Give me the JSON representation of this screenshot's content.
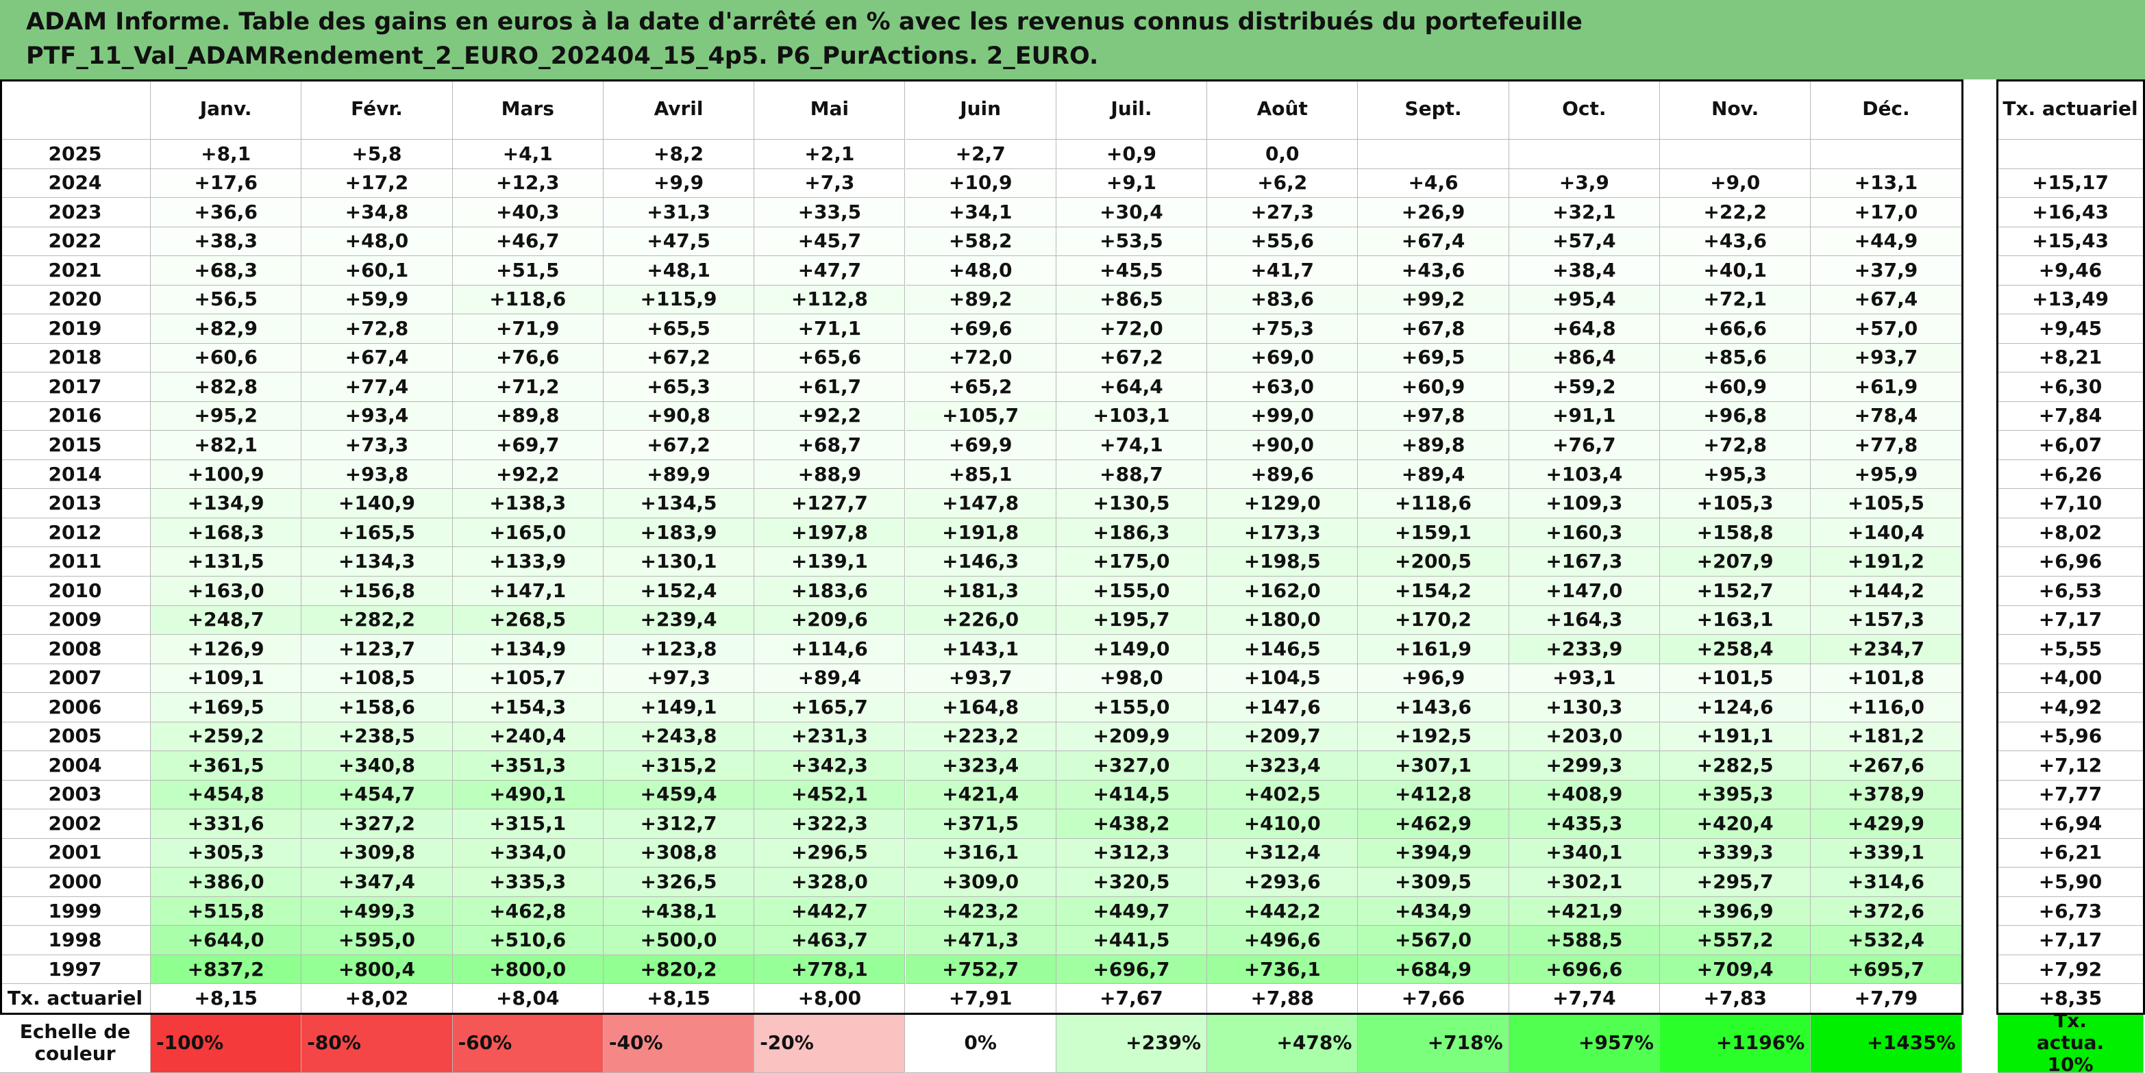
{
  "header": {
    "title_lines": [
      "ADAM Informe. Table des gains en euros à la date d'arrêté en % avec les revenus connus distribués du portefeuille",
      "PTF_11_Val_ADAMRendement_2_EURO_202404_15_4p5. P6_PurActions. 2_EURO."
    ]
  },
  "table": {
    "months": [
      "Janv.",
      "Févr.",
      "Mars",
      "Avril",
      "Mai",
      "Juin",
      "Juil.",
      "Août",
      "Sept.",
      "Oct.",
      "Nov.",
      "Déc."
    ],
    "rate_header": "Tx. actuariel",
    "rows": [
      {
        "year": "2025",
        "values": [
          "+8,1",
          "+5,8",
          "+4,1",
          "+8,2",
          "+2,1",
          "+2,7",
          "+0,9",
          "0,0"
        ]
      },
      {
        "year": "2024",
        "values": [
          "+17,6",
          "+17,2",
          "+12,3",
          "+9,9",
          "+7,3",
          "+10,9",
          "+9,1",
          "+6,2",
          "+4,6",
          "+3,9",
          "+9,0",
          "+13,1"
        ],
        "rate": "+15,17"
      },
      {
        "year": "2023",
        "values": [
          "+36,6",
          "+34,8",
          "+40,3",
          "+31,3",
          "+33,5",
          "+34,1",
          "+30,4",
          "+27,3",
          "+26,9",
          "+32,1",
          "+22,2",
          "+17,0"
        ],
        "rate": "+16,43"
      },
      {
        "year": "2022",
        "values": [
          "+38,3",
          "+48,0",
          "+46,7",
          "+47,5",
          "+45,7",
          "+58,2",
          "+53,5",
          "+55,6",
          "+67,4",
          "+57,4",
          "+43,6",
          "+44,9"
        ],
        "rate": "+15,43"
      },
      {
        "year": "2021",
        "values": [
          "+68,3",
          "+60,1",
          "+51,5",
          "+48,1",
          "+47,7",
          "+48,0",
          "+45,5",
          "+41,7",
          "+43,6",
          "+38,4",
          "+40,1",
          "+37,9"
        ],
        "rate": "+9,46"
      },
      {
        "year": "2020",
        "values": [
          "+56,5",
          "+59,9",
          "+118,6",
          "+115,9",
          "+112,8",
          "+89,2",
          "+86,5",
          "+83,6",
          "+99,2",
          "+95,4",
          "+72,1",
          "+67,4"
        ],
        "rate": "+13,49"
      },
      {
        "year": "2019",
        "values": [
          "+82,9",
          "+72,8",
          "+71,9",
          "+65,5",
          "+71,1",
          "+69,6",
          "+72,0",
          "+75,3",
          "+67,8",
          "+64,8",
          "+66,6",
          "+57,0"
        ],
        "rate": "+9,45"
      },
      {
        "year": "2018",
        "values": [
          "+60,6",
          "+67,4",
          "+76,6",
          "+67,2",
          "+65,6",
          "+72,0",
          "+67,2",
          "+69,0",
          "+69,5",
          "+86,4",
          "+85,6",
          "+93,7"
        ],
        "rate": "+8,21"
      },
      {
        "year": "2017",
        "values": [
          "+82,8",
          "+77,4",
          "+71,2",
          "+65,3",
          "+61,7",
          "+65,2",
          "+64,4",
          "+63,0",
          "+60,9",
          "+59,2",
          "+60,9",
          "+61,9"
        ],
        "rate": "+6,30"
      },
      {
        "year": "2016",
        "values": [
          "+95,2",
          "+93,4",
          "+89,8",
          "+90,8",
          "+92,2",
          "+105,7",
          "+103,1",
          "+99,0",
          "+97,8",
          "+91,1",
          "+96,8",
          "+78,4"
        ],
        "rate": "+7,84"
      },
      {
        "year": "2015",
        "values": [
          "+82,1",
          "+73,3",
          "+69,7",
          "+67,2",
          "+68,7",
          "+69,9",
          "+74,1",
          "+90,0",
          "+89,8",
          "+76,7",
          "+72,8",
          "+77,8"
        ],
        "rate": "+6,07"
      },
      {
        "year": "2014",
        "values": [
          "+100,9",
          "+93,8",
          "+92,2",
          "+89,9",
          "+88,9",
          "+85,1",
          "+88,7",
          "+89,6",
          "+89,4",
          "+103,4",
          "+95,3",
          "+95,9"
        ],
        "rate": "+6,26"
      },
      {
        "year": "2013",
        "values": [
          "+134,9",
          "+140,9",
          "+138,3",
          "+134,5",
          "+127,7",
          "+147,8",
          "+130,5",
          "+129,0",
          "+118,6",
          "+109,3",
          "+105,3",
          "+105,5"
        ],
        "rate": "+7,10"
      },
      {
        "year": "2012",
        "values": [
          "+168,3",
          "+165,5",
          "+165,0",
          "+183,9",
          "+197,8",
          "+191,8",
          "+186,3",
          "+173,3",
          "+159,1",
          "+160,3",
          "+158,8",
          "+140,4"
        ],
        "rate": "+8,02"
      },
      {
        "year": "2011",
        "values": [
          "+131,5",
          "+134,3",
          "+133,9",
          "+130,1",
          "+139,1",
          "+146,3",
          "+175,0",
          "+198,5",
          "+200,5",
          "+167,3",
          "+207,9",
          "+191,2"
        ],
        "rate": "+6,96"
      },
      {
        "year": "2010",
        "values": [
          "+163,0",
          "+156,8",
          "+147,1",
          "+152,4",
          "+183,6",
          "+181,3",
          "+155,0",
          "+162,0",
          "+154,2",
          "+147,0",
          "+152,7",
          "+144,2"
        ],
        "rate": "+6,53"
      },
      {
        "year": "2009",
        "values": [
          "+248,7",
          "+282,2",
          "+268,5",
          "+239,4",
          "+209,6",
          "+226,0",
          "+195,7",
          "+180,0",
          "+170,2",
          "+164,3",
          "+163,1",
          "+157,3"
        ],
        "rate": "+7,17"
      },
      {
        "year": "2008",
        "values": [
          "+126,9",
          "+123,7",
          "+134,9",
          "+123,8",
          "+114,6",
          "+143,1",
          "+149,0",
          "+146,5",
          "+161,9",
          "+233,9",
          "+258,4",
          "+234,7"
        ],
        "rate": "+5,55"
      },
      {
        "year": "2007",
        "values": [
          "+109,1",
          "+108,5",
          "+105,7",
          "+97,3",
          "+89,4",
          "+93,7",
          "+98,0",
          "+104,5",
          "+96,9",
          "+93,1",
          "+101,5",
          "+101,8"
        ],
        "rate": "+4,00"
      },
      {
        "year": "2006",
        "values": [
          "+169,5",
          "+158,6",
          "+154,3",
          "+149,1",
          "+165,7",
          "+164,8",
          "+155,0",
          "+147,6",
          "+143,6",
          "+130,3",
          "+124,6",
          "+116,0"
        ],
        "rate": "+4,92"
      },
      {
        "year": "2005",
        "values": [
          "+259,2",
          "+238,5",
          "+240,4",
          "+243,8",
          "+231,3",
          "+223,2",
          "+209,9",
          "+209,7",
          "+192,5",
          "+203,0",
          "+191,1",
          "+181,2"
        ],
        "rate": "+5,96"
      },
      {
        "year": "2004",
        "values": [
          "+361,5",
          "+340,8",
          "+351,3",
          "+315,2",
          "+342,3",
          "+323,4",
          "+327,0",
          "+323,4",
          "+307,1",
          "+299,3",
          "+282,5",
          "+267,6"
        ],
        "rate": "+7,12"
      },
      {
        "year": "2003",
        "values": [
          "+454,8",
          "+454,7",
          "+490,1",
          "+459,4",
          "+452,1",
          "+421,4",
          "+414,5",
          "+402,5",
          "+412,8",
          "+408,9",
          "+395,3",
          "+378,9"
        ],
        "rate": "+7,77"
      },
      {
        "year": "2002",
        "values": [
          "+331,6",
          "+327,2",
          "+315,1",
          "+312,7",
          "+322,3",
          "+371,5",
          "+438,2",
          "+410,0",
          "+462,9",
          "+435,3",
          "+420,4",
          "+429,9"
        ],
        "rate": "+6,94"
      },
      {
        "year": "2001",
        "values": [
          "+305,3",
          "+309,8",
          "+334,0",
          "+308,8",
          "+296,5",
          "+316,1",
          "+312,3",
          "+312,4",
          "+394,9",
          "+340,1",
          "+339,3",
          "+339,1"
        ],
        "rate": "+6,21"
      },
      {
        "year": "2000",
        "values": [
          "+386,0",
          "+347,4",
          "+335,3",
          "+326,5",
          "+328,0",
          "+309,0",
          "+320,5",
          "+293,6",
          "+309,5",
          "+302,1",
          "+295,7",
          "+314,6"
        ],
        "rate": "+5,90"
      },
      {
        "year": "1999",
        "values": [
          "+515,8",
          "+499,3",
          "+462,8",
          "+438,1",
          "+442,7",
          "+423,2",
          "+449,7",
          "+442,2",
          "+434,9",
          "+421,9",
          "+396,9",
          "+372,6"
        ],
        "rate": "+6,73"
      },
      {
        "year": "1998",
        "values": [
          "+644,0",
          "+595,0",
          "+510,6",
          "+500,0",
          "+463,7",
          "+471,3",
          "+441,5",
          "+496,6",
          "+567,0",
          "+588,5",
          "+557,2",
          "+532,4"
        ],
        "rate": "+7,17"
      },
      {
        "year": "1997",
        "values": [
          "+837,2",
          "+800,4",
          "+800,0",
          "+820,2",
          "+778,1",
          "+752,7",
          "+696,7",
          "+736,1",
          "+684,9",
          "+696,6",
          "+709,4",
          "+695,7"
        ],
        "rate": "+7,92"
      }
    ],
    "footer": {
      "label": "Tx. actuariel",
      "values": [
        "+8,15",
        "+8,02",
        "+8,04",
        "+8,15",
        "+8,00",
        "+7,91",
        "+7,67",
        "+7,88",
        "+7,66",
        "+7,74",
        "+7,83",
        "+7,79"
      ],
      "rate": "+8,35"
    }
  },
  "scale": {
    "label": "Echelle de couleur",
    "items": [
      "-100%",
      "-80%",
      "-60%",
      "-40%",
      "-20%",
      "0%",
      "+239%",
      "+478%",
      "+718%",
      "+957%",
      "+1196%",
      "+1435%"
    ],
    "colors": [
      "#f43a3a",
      "#f44646",
      "#f55656",
      "#f68787",
      "#fbc2c2",
      "#ffffff",
      "#ccffcc",
      "#a8ffa8",
      "#7cff7c",
      "#50ff50",
      "#2aff2a",
      "#00f000"
    ],
    "rate_label": "Tx. actua. 10%",
    "rate_color": "#00f000"
  }
}
